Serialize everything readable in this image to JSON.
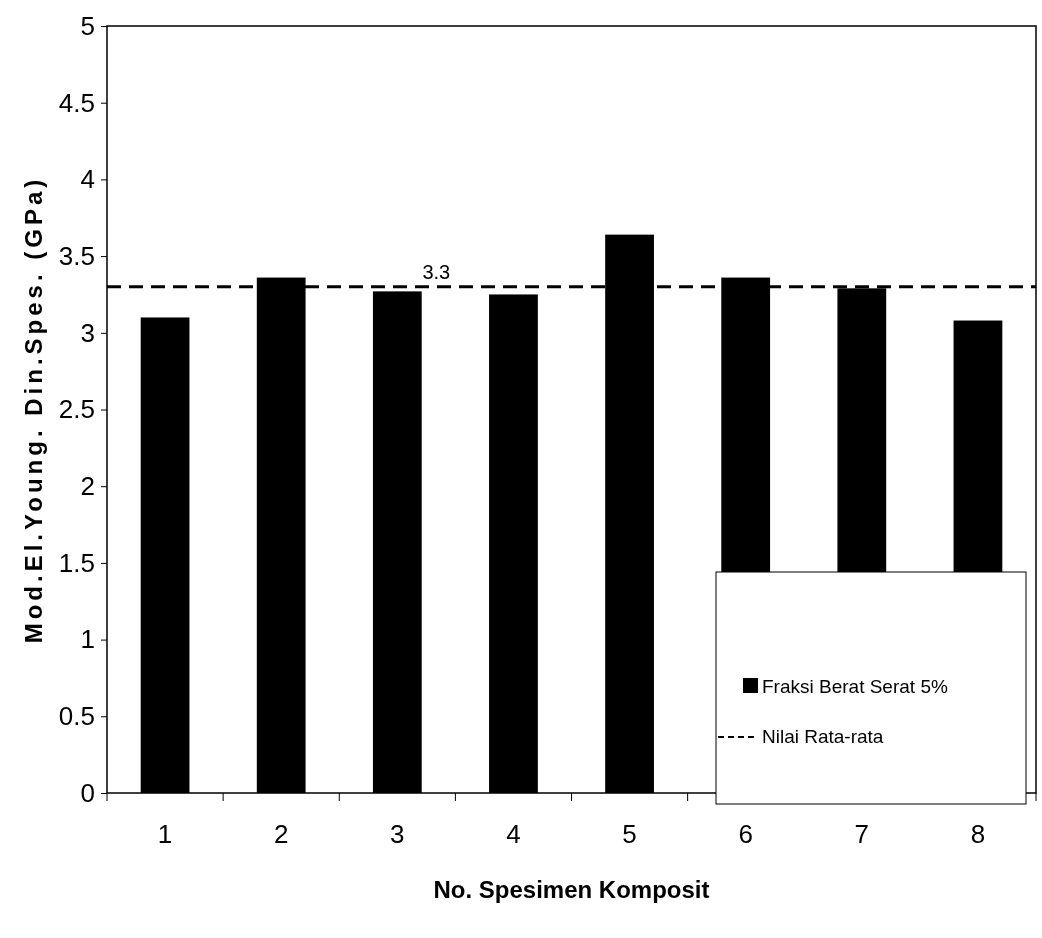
{
  "chart_data": {
    "type": "bar",
    "xlabel": "No. Spesimen Komposit",
    "ylabel": "Mod.El.Young. Din.Spes. (GPa)",
    "categories": [
      "1",
      "2",
      "3",
      "4",
      "5",
      "6",
      "7",
      "8"
    ],
    "series": [
      {
        "name": "Fraksi Berat Serat 5%",
        "color": "#000000",
        "values": [
          3.1,
          3.36,
          3.27,
          3.25,
          3.64,
          3.36,
          3.29,
          3.08
        ]
      }
    ],
    "ylim": [
      0,
      5
    ],
    "yticks": [
      0,
      0.5,
      1,
      1.5,
      2,
      2.5,
      3,
      3.5,
      4,
      4.5,
      5
    ],
    "ref_lines": [
      {
        "axis": "y",
        "value": 3.3,
        "label": "Nilai Rata-rata",
        "color": "#000000",
        "line_style": "dashed"
      }
    ],
    "annotations": [
      {
        "text": "3.3",
        "x": "3",
        "y": 3.3
      }
    ],
    "legend": "bottom right",
    "grid": false
  }
}
